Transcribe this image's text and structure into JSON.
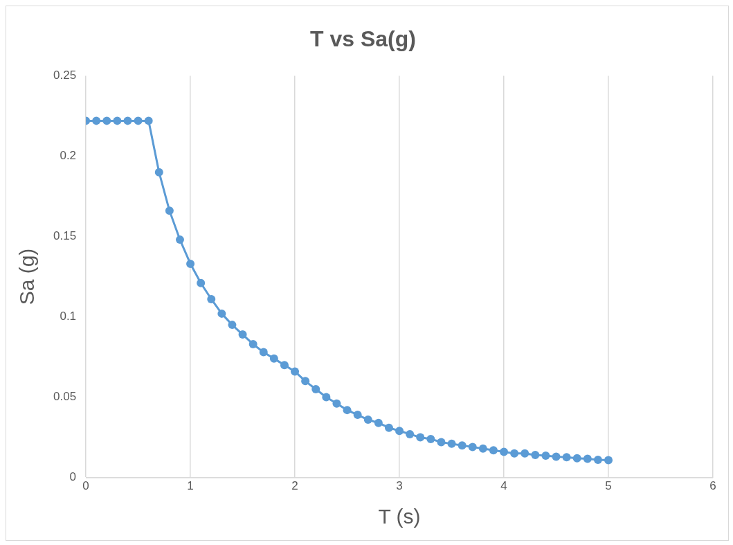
{
  "chart_data": {
    "type": "line",
    "title": "T vs Sa(g)",
    "xlabel": "T (s)",
    "ylabel": "Sa (g)",
    "x": [
      0,
      0.1,
      0.2,
      0.3,
      0.4,
      0.5,
      0.6,
      0.7,
      0.8,
      0.9,
      1.0,
      1.1,
      1.2,
      1.3,
      1.4,
      1.5,
      1.6,
      1.7,
      1.8,
      1.9,
      2.0,
      2.1,
      2.2,
      2.3,
      2.4,
      2.5,
      2.6,
      2.7,
      2.8,
      2.9,
      3.0,
      3.1,
      3.2,
      3.3,
      3.4,
      3.5,
      3.6,
      3.7,
      3.8,
      3.9,
      4.0,
      4.1,
      4.2,
      4.3,
      4.4,
      4.5,
      4.6,
      4.7,
      4.8,
      4.9,
      5.0
    ],
    "series": [
      {
        "color": "#5b9bd5",
        "values": [
          0.222,
          0.222,
          0.222,
          0.222,
          0.222,
          0.222,
          0.222,
          0.19,
          0.166,
          0.148,
          0.133,
          0.121,
          0.111,
          0.102,
          0.095,
          0.089,
          0.083,
          0.078,
          0.074,
          0.07,
          0.066,
          0.06,
          0.055,
          0.05,
          0.046,
          0.042,
          0.039,
          0.036,
          0.034,
          0.031,
          0.029,
          0.027,
          0.025,
          0.024,
          0.022,
          0.021,
          0.02,
          0.019,
          0.018,
          0.017,
          0.016,
          0.015,
          0.015,
          0.014,
          0.0136,
          0.013,
          0.0126,
          0.012,
          0.0117,
          0.011,
          0.0108
        ]
      }
    ],
    "xlim": [
      0,
      6
    ],
    "xticks": [
      0,
      1,
      2,
      3,
      4,
      5,
      6
    ],
    "ylim": [
      0,
      0.25
    ],
    "yticks": [
      0,
      0.05,
      0.1,
      0.15,
      0.2,
      0.25
    ],
    "grid": "x",
    "legend": false,
    "marker": "circle",
    "line_style": "solid"
  }
}
